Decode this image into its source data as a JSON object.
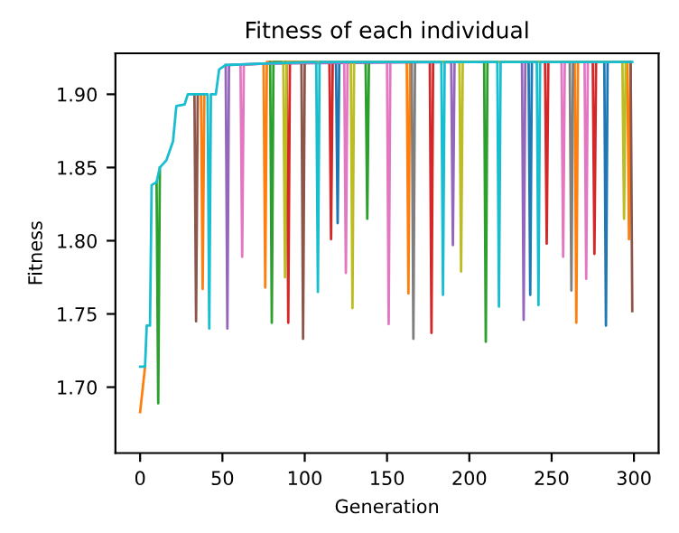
{
  "chart_data": {
    "type": "line",
    "title": "Fitness of each individual",
    "xlabel": "Generation",
    "ylabel": "Fitness",
    "xlim": [
      -15,
      315
    ],
    "ylim": [
      1.655,
      1.928
    ],
    "xticks": [
      0,
      50,
      100,
      150,
      200,
      250,
      300
    ],
    "yticks": [
      {
        "value": 1.7,
        "label": "1.70"
      },
      {
        "value": 1.75,
        "label": "1.75"
      },
      {
        "value": 1.8,
        "label": "1.80"
      },
      {
        "value": 1.85,
        "label": "1.85"
      },
      {
        "value": 1.9,
        "label": "1.90"
      }
    ],
    "grid": false,
    "marker": "none",
    "line_style": "solid",
    "series": [
      {
        "color": "#1f77b4",
        "x": [
          119,
          120,
          121,
          236,
          237,
          238,
          282,
          283,
          284
        ],
        "values": [
          1.922,
          1.812,
          1.922,
          1.922,
          1.763,
          1.922,
          1.922,
          1.742,
          1.922
        ]
      },
      {
        "color": "#ff7f0e",
        "x": [
          0,
          3,
          4,
          37,
          38,
          39,
          40,
          75,
          76,
          77,
          162,
          163,
          164,
          264,
          265,
          266,
          296,
          297,
          298
        ],
        "values": [
          1.683,
          1.714,
          null,
          1.9,
          1.767,
          1.9,
          null,
          1.921,
          1.768,
          1.922,
          1.922,
          1.764,
          1.922,
          1.922,
          1.744,
          1.922,
          1.922,
          1.801,
          1.922
        ]
      },
      {
        "color": "#2ca02c",
        "x": [
          10,
          11,
          12,
          13,
          79,
          80,
          81,
          137,
          138,
          139,
          209,
          210,
          211
        ],
        "values": [
          1.84,
          1.689,
          1.85,
          null,
          1.922,
          1.744,
          1.922,
          1.922,
          1.815,
          1.922,
          1.922,
          1.731,
          1.922
        ]
      },
      {
        "color": "#d62728",
        "x": [
          89,
          90,
          91,
          115,
          116,
          117,
          176,
          177,
          178,
          246,
          247,
          248,
          275,
          276,
          277
        ],
        "values": [
          1.922,
          1.744,
          1.922,
          1.922,
          1.801,
          1.922,
          1.922,
          1.737,
          1.922,
          1.922,
          1.798,
          1.922,
          1.922,
          1.791,
          1.922
        ]
      },
      {
        "color": "#9467bd",
        "x": [
          52,
          53,
          54,
          75,
          189,
          190,
          191,
          232,
          233,
          234
        ],
        "values": [
          1.92,
          1.74,
          1.92,
          1.921,
          1.922,
          1.797,
          1.922,
          1.922,
          1.746,
          1.922
        ]
      },
      {
        "color": "#8c564b",
        "x": [
          33,
          34,
          35,
          36,
          98,
          99,
          100,
          298,
          299
        ],
        "values": [
          1.9,
          1.745,
          1.9,
          null,
          1.922,
          1.733,
          1.922,
          1.922,
          1.752
        ]
      },
      {
        "color": "#e377c2",
        "x": [
          61,
          62,
          63,
          75,
          124,
          125,
          126,
          150,
          151,
          152,
          256,
          257,
          258,
          270,
          271,
          272
        ],
        "values": [
          1.92,
          1.789,
          1.92,
          1.921,
          1.922,
          1.778,
          1.922,
          1.922,
          1.743,
          1.922,
          1.922,
          1.789,
          1.922,
          1.922,
          1.774,
          1.922
        ]
      },
      {
        "color": "#7f7f7f",
        "x": [
          165,
          166,
          167,
          261,
          262,
          263
        ],
        "values": [
          1.922,
          1.733,
          1.922,
          1.922,
          1.766,
          1.922
        ]
      },
      {
        "color": "#bcbd22",
        "x": [
          87,
          88,
          89,
          128,
          129,
          130,
          194,
          195,
          196,
          293,
          294,
          295
        ],
        "values": [
          1.922,
          1.775,
          1.922,
          1.922,
          1.754,
          1.922,
          1.922,
          1.779,
          1.922,
          1.922,
          1.815,
          1.922
        ]
      },
      {
        "color": "#17becf",
        "x": [
          0,
          3,
          4,
          6,
          7,
          10,
          12,
          16,
          20,
          22,
          27,
          29,
          41,
          42,
          43,
          46,
          48,
          52,
          75,
          107,
          108,
          109,
          183,
          184,
          185,
          217,
          218,
          219,
          241,
          242,
          243,
          299
        ],
        "values": [
          1.714,
          1.714,
          1.742,
          1.742,
          1.838,
          1.84,
          1.85,
          1.855,
          1.868,
          1.892,
          1.893,
          1.9,
          1.9,
          1.74,
          1.9,
          1.9,
          1.917,
          1.92,
          1.921,
          1.922,
          1.765,
          1.922,
          1.922,
          1.763,
          1.922,
          1.922,
          1.755,
          1.922,
          1.922,
          1.756,
          1.922,
          1.922
        ]
      }
    ]
  }
}
